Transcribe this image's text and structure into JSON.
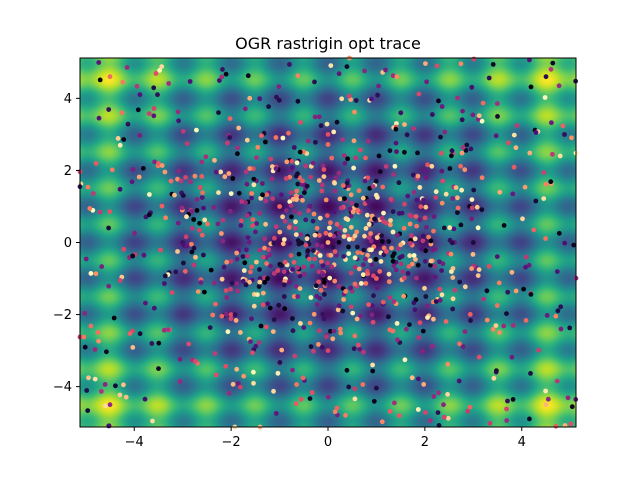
{
  "chart_data": {
    "type": "scatter",
    "title": "OGR rastrigin opt trace",
    "xlabel": "",
    "ylabel": "",
    "xlim": [
      -5.12,
      5.12
    ],
    "ylim": [
      -5.12,
      5.12
    ],
    "x_ticks": [
      -4,
      -2,
      0,
      2,
      4
    ],
    "y_ticks": [
      -4,
      -2,
      0,
      2,
      4
    ],
    "x_tick_labels": [
      "−4",
      "−2",
      "0",
      "2",
      "4"
    ],
    "y_tick_labels": [
      "−4",
      "−2",
      "0",
      "2",
      "4"
    ],
    "grid": false,
    "background": {
      "type": "heatmap",
      "function": "rastrigin",
      "colormap": "viridis"
    },
    "points_colormap": "magma",
    "point_count": 1100,
    "points_sample": [
      {
        "x": -4.5,
        "y": 4.6
      },
      {
        "x": -4.5,
        "y": -4.5
      },
      {
        "x": 4.5,
        "y": 4.6
      },
      {
        "x": 4.5,
        "y": -4.5
      },
      {
        "x": 0.0,
        "y": 0.0
      },
      {
        "x": -1.0,
        "y": 1.0
      },
      {
        "x": 1.0,
        "y": -1.0
      },
      {
        "x": 2.0,
        "y": 2.0
      },
      {
        "x": -2.0,
        "y": -2.0
      },
      {
        "x": 3.0,
        "y": 0.0
      },
      {
        "x": -3.0,
        "y": 0.0
      },
      {
        "x": 0.0,
        "y": 3.0
      },
      {
        "x": 0.0,
        "y": -3.0
      },
      {
        "x": 3.5,
        "y": 3.5
      },
      {
        "x": -3.5,
        "y": -3.5
      }
    ]
  }
}
